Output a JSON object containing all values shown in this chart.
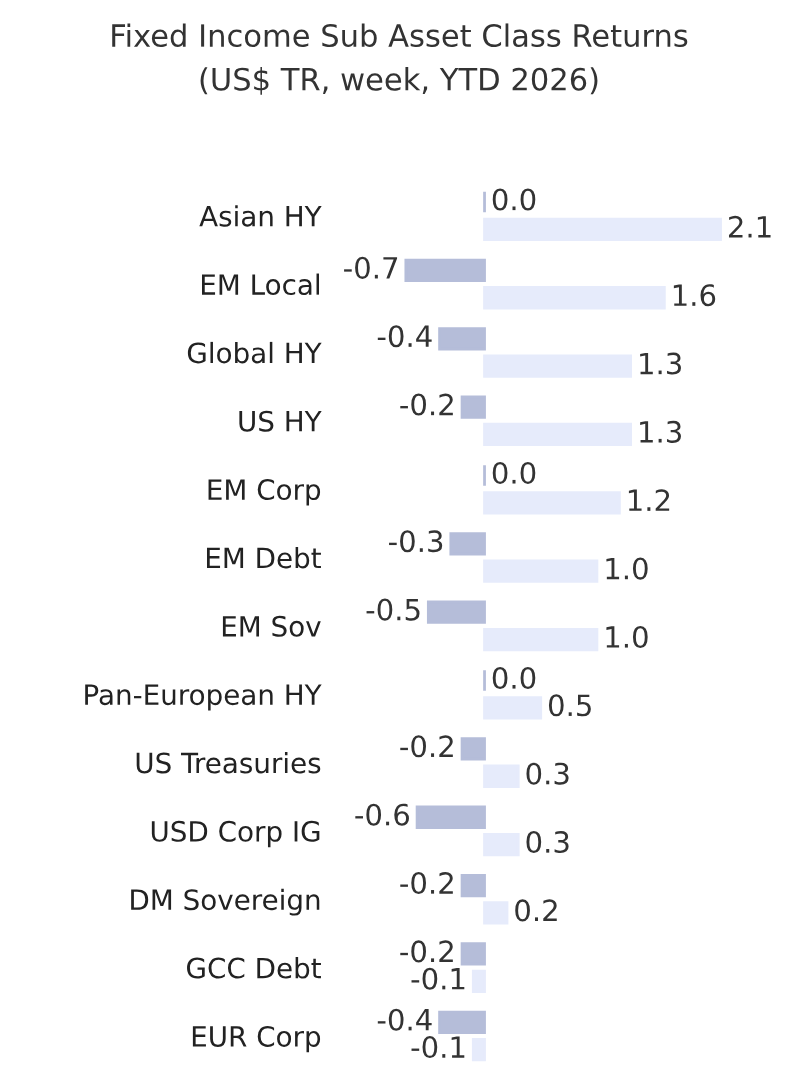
{
  "chart_data": {
    "type": "bar",
    "orientation": "horizontal",
    "title": "Fixed Income Sub Asset Class Returns",
    "subtitle": "(US$ TR, week, YTD 2026)",
    "categories": [
      "Asian HY",
      "EM Local",
      "Global HY",
      "US HY",
      "EM Corp",
      "EM Debt",
      "EM Sov",
      "Pan-European HY",
      "US Treasuries",
      "USD Corp IG",
      "DM Sovereign",
      "GCC Debt",
      "EUR Corp"
    ],
    "series": [
      {
        "color": "#b5bdd9",
        "values": [
          0.0,
          -0.7,
          -0.4,
          -0.2,
          0.0,
          -0.3,
          -0.5,
          0.0,
          -0.2,
          -0.6,
          -0.2,
          -0.2,
          -0.4
        ],
        "value_labels": [
          "0.0",
          "-0.7",
          "-0.4",
          "-0.2",
          "0.0",
          "-0.3",
          "-0.5",
          "0.0",
          "-0.2",
          "-0.6",
          "-0.2",
          "-0.2",
          "-0.4"
        ]
      },
      {
        "color": "#e6ebfb",
        "values": [
          2.1,
          1.6,
          1.3,
          1.3,
          1.2,
          1.0,
          1.0,
          0.5,
          0.3,
          0.3,
          0.2,
          -0.1,
          -0.1
        ],
        "value_labels": [
          "2.1",
          "1.6",
          "1.3",
          "1.3",
          "1.2",
          "1.0",
          "1.0",
          "0.5",
          "0.3",
          "0.3",
          "0.2",
          "-0.1",
          "-0.1"
        ]
      }
    ],
    "grid": false,
    "legend": false
  }
}
